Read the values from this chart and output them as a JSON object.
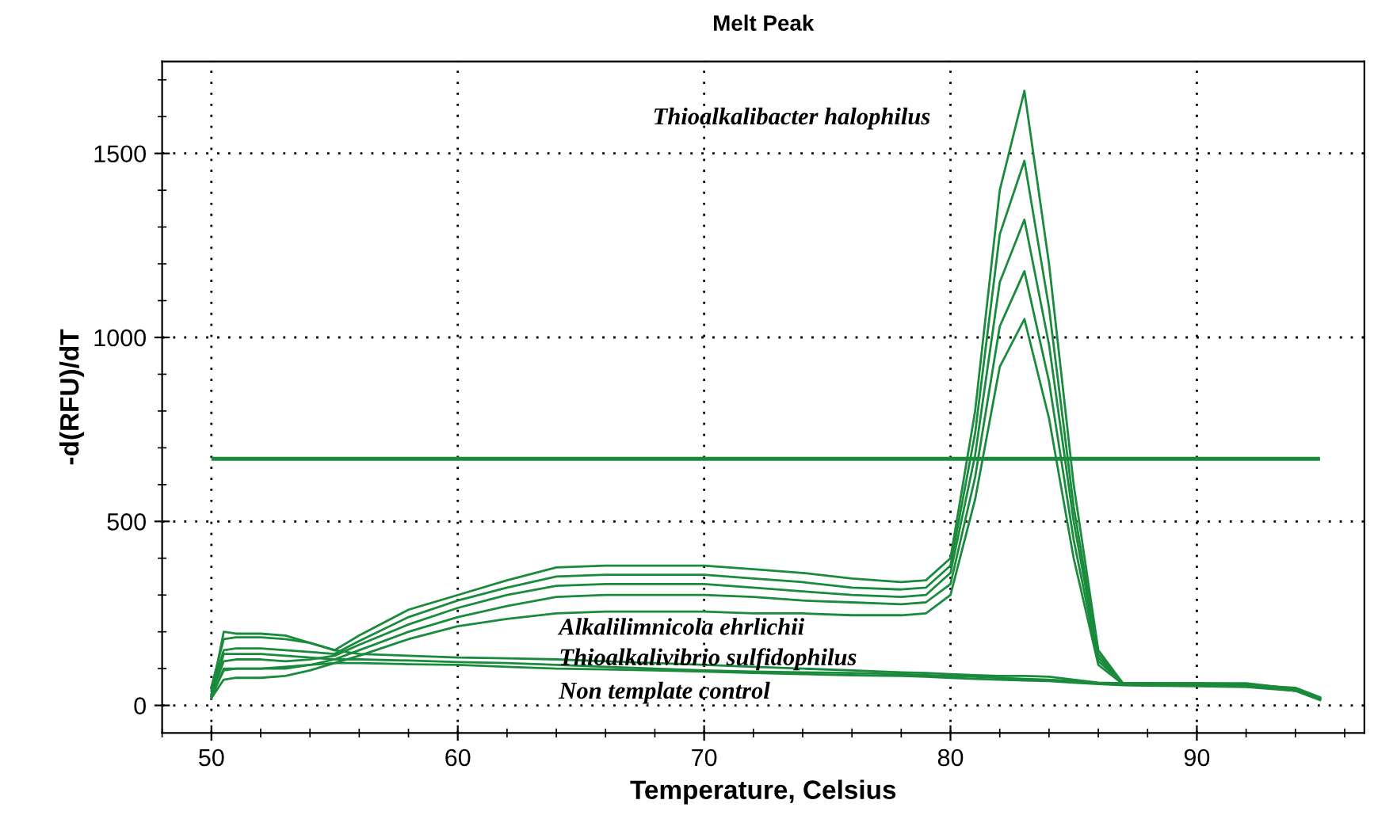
{
  "chart_data": {
    "type": "line",
    "title": "Melt Peak",
    "xlabel": "Temperature, Celsius",
    "ylabel": "-d(RFU)/dT",
    "x": [
      50,
      50.5,
      51,
      52,
      53,
      54,
      55,
      56,
      58,
      60,
      62,
      64,
      66,
      68,
      70,
      72,
      74,
      76,
      78,
      79,
      80,
      81,
      82,
      83,
      84,
      85,
      86,
      87,
      88,
      90,
      92,
      94,
      95
    ],
    "series": [
      {
        "color": "#1a8a3c",
        "values": [
          50,
          180,
          185,
          185,
          180,
          170,
          150,
          190,
          260,
          300,
          340,
          375,
          380,
          380,
          380,
          370,
          360,
          345,
          335,
          340,
          400,
          800,
          1400,
          1670,
          1200,
          600,
          150,
          60,
          60,
          60,
          60,
          45,
          20
        ]
      },
      {
        "color": "#1a8a3c",
        "values": [
          40,
          150,
          155,
          155,
          150,
          145,
          140,
          175,
          240,
          285,
          320,
          350,
          355,
          355,
          355,
          345,
          335,
          320,
          315,
          320,
          380,
          740,
          1280,
          1480,
          1080,
          540,
          140,
          60,
          60,
          60,
          58,
          45,
          20
        ]
      },
      {
        "color": "#1a8a3c",
        "values": [
          30,
          120,
          125,
          125,
          120,
          125,
          135,
          165,
          220,
          265,
          300,
          325,
          330,
          330,
          330,
          320,
          310,
          300,
          295,
          300,
          360,
          680,
          1150,
          1320,
          980,
          500,
          130,
          60,
          60,
          58,
          56,
          42,
          18
        ]
      },
      {
        "color": "#1a8a3c",
        "values": [
          25,
          95,
          100,
          100,
          100,
          110,
          125,
          150,
          200,
          240,
          270,
          295,
          300,
          300,
          300,
          295,
          285,
          280,
          275,
          280,
          330,
          620,
          1030,
          1180,
          880,
          450,
          120,
          60,
          58,
          56,
          55,
          40,
          16
        ]
      },
      {
        "color": "#1a8a3c",
        "values": [
          20,
          70,
          75,
          75,
          80,
          95,
          115,
          135,
          180,
          215,
          235,
          250,
          255,
          255,
          255,
          250,
          250,
          245,
          245,
          250,
          300,
          560,
          920,
          1050,
          780,
          400,
          110,
          58,
          56,
          55,
          54,
          40,
          15
        ]
      },
      {
        "color": "#1a8a3c",
        "values": [
          30,
          200,
          195,
          195,
          190,
          170,
          150,
          140,
          135,
          130,
          128,
          125,
          120,
          115,
          110,
          105,
          100,
          95,
          90,
          88,
          85,
          82,
          80,
          80,
          78,
          70,
          62,
          60,
          58,
          58,
          56,
          48,
          22
        ]
      },
      {
        "color": "#1a8a3c",
        "values": [
          25,
          140,
          140,
          140,
          135,
          130,
          125,
          125,
          122,
          118,
          115,
          110,
          105,
          100,
          95,
          92,
          90,
          88,
          85,
          82,
          80,
          78,
          75,
          72,
          70,
          66,
          60,
          56,
          55,
          55,
          52,
          42,
          18
        ]
      },
      {
        "color": "#1a8a3c",
        "values": [
          20,
          100,
          100,
          100,
          105,
          110,
          115,
          115,
          112,
          110,
          105,
          100,
          98,
          95,
          92,
          88,
          85,
          82,
          80,
          78,
          75,
          72,
          70,
          68,
          66,
          62,
          58,
          55,
          54,
          52,
          50,
          40,
          15
        ]
      }
    ],
    "ref_lines": [
      {
        "axis": "y",
        "value": 670,
        "color": "#1a8a3c"
      }
    ],
    "annotations": [
      "Thioalkalibacter halophilus",
      "Alkalilimnicola ehrlichii",
      "Thioalkalivibrio sulfidophilus",
      "Non template control"
    ],
    "xlim": [
      48,
      96.8
    ],
    "ylim": [
      -75,
      1750
    ],
    "xticks": [
      50,
      60,
      70,
      80,
      90
    ],
    "yticks": [
      0,
      500,
      1000,
      1500
    ],
    "grid": true,
    "legend": false,
    "marker": "none",
    "line_style": "solid"
  }
}
